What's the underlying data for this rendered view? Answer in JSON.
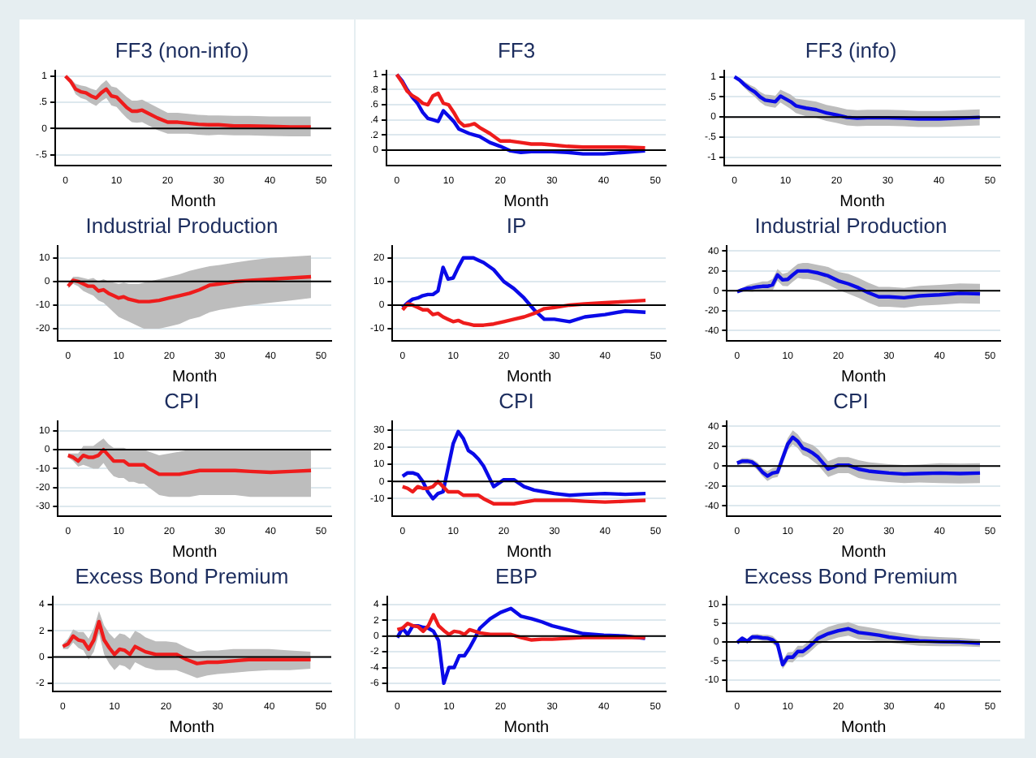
{
  "chart_data": [
    {
      "type": "line",
      "title": "FF3 (non-info)",
      "xlabel": "Month",
      "x": [
        0,
        1,
        2,
        3,
        4,
        5,
        6,
        7,
        8,
        9,
        10,
        11,
        12,
        13,
        14,
        15,
        16,
        18,
        20,
        22,
        24,
        26,
        28,
        30,
        33,
        36,
        40,
        44,
        48
      ],
      "xlim": [
        -2,
        52
      ],
      "xticks": [
        0,
        10,
        20,
        30,
        40,
        50
      ],
      "ylim": [
        -0.7,
        1.1
      ],
      "yticks": [
        {
          "value": -0.5,
          "label": "-.5"
        },
        0,
        {
          "value": 0.5,
          "label": ".5"
        },
        1
      ],
      "grid": "y",
      "ref_lines": [
        {
          "axis": "y",
          "value": 0,
          "color": "#000000"
        }
      ],
      "series": [
        {
          "color": "#ee1c1c",
          "values": [
            1,
            0.9,
            0.75,
            0.7,
            0.68,
            0.62,
            0.58,
            0.68,
            0.75,
            0.62,
            0.6,
            0.5,
            0.4,
            0.33,
            0.33,
            0.35,
            0.3,
            0.2,
            0.12,
            0.12,
            0.1,
            0.08,
            0.07,
            0.07,
            0.05,
            0.05,
            0.04,
            0.03,
            0.03
          ],
          "upper": [
            1,
            0.95,
            0.85,
            0.82,
            0.8,
            0.76,
            0.73,
            0.84,
            0.92,
            0.8,
            0.78,
            0.69,
            0.6,
            0.53,
            0.53,
            0.55,
            0.5,
            0.4,
            0.3,
            0.3,
            0.28,
            0.26,
            0.25,
            0.25,
            0.24,
            0.24,
            0.23,
            0.23,
            0.23
          ],
          "lower": [
            1,
            0.85,
            0.65,
            0.58,
            0.55,
            0.48,
            0.43,
            0.52,
            0.58,
            0.44,
            0.41,
            0.3,
            0.2,
            0.12,
            0.11,
            0.12,
            0.07,
            -0.03,
            -0.1,
            -0.1,
            -0.1,
            -0.12,
            -0.13,
            -0.12,
            -0.13,
            -0.13,
            -0.14,
            -0.15,
            -0.15
          ]
        }
      ]
    },
    {
      "type": "line",
      "title": "FF3",
      "xlabel": "Month",
      "x": [
        0,
        1,
        2,
        3,
        4,
        5,
        6,
        7,
        8,
        9,
        10,
        11,
        12,
        13,
        14,
        15,
        16,
        18,
        20,
        22,
        24,
        26,
        28,
        30,
        33,
        36,
        40,
        44,
        48
      ],
      "xlim": [
        -2,
        52
      ],
      "xticks": [
        0,
        10,
        20,
        30,
        40,
        50
      ],
      "ylim": [
        -0.2,
        1.05
      ],
      "yticks": [
        0,
        {
          "value": 0.2,
          "label": ".2"
        },
        {
          "value": 0.4,
          "label": ".4"
        },
        {
          "value": 0.6,
          "label": ".6"
        },
        {
          "value": 0.8,
          "label": ".8"
        },
        1
      ],
      "grid": "y",
      "ref_lines": [
        {
          "axis": "y",
          "value": 0,
          "color": "#000000"
        }
      ],
      "series": [
        {
          "color": "#ee1c1c",
          "values": [
            1,
            0.9,
            0.78,
            0.72,
            0.68,
            0.62,
            0.6,
            0.72,
            0.75,
            0.62,
            0.6,
            0.5,
            0.38,
            0.32,
            0.33,
            0.35,
            0.3,
            0.22,
            0.12,
            0.12,
            0.1,
            0.08,
            0.08,
            0.07,
            0.05,
            0.04,
            0.04,
            0.04,
            0.03
          ]
        },
        {
          "color": "#0a0ae8",
          "values": [
            1,
            0.92,
            0.8,
            0.7,
            0.62,
            0.5,
            0.42,
            0.4,
            0.38,
            0.52,
            0.45,
            0.38,
            0.28,
            0.25,
            0.22,
            0.2,
            0.18,
            0.1,
            0.05,
            -0.01,
            -0.03,
            -0.02,
            -0.02,
            -0.02,
            -0.03,
            -0.05,
            -0.05,
            -0.03,
            -0.01
          ]
        }
      ]
    },
    {
      "type": "line",
      "title": "FF3 (info)",
      "xlabel": "Month",
      "x": [
        0,
        1,
        2,
        3,
        4,
        5,
        6,
        7,
        8,
        9,
        10,
        11,
        12,
        13,
        14,
        15,
        16,
        18,
        20,
        22,
        24,
        26,
        28,
        30,
        33,
        36,
        40,
        44,
        48
      ],
      "xlim": [
        -2,
        52
      ],
      "xticks": [
        0,
        10,
        20,
        30,
        40,
        50
      ],
      "ylim": [
        -1.2,
        1.15
      ],
      "yticks": [
        -1,
        {
          "value": -0.5,
          "label": "-.5"
        },
        0,
        {
          "value": 0.5,
          "label": ".5"
        },
        1
      ],
      "grid": "y",
      "ref_lines": [
        {
          "axis": "y",
          "value": 0,
          "color": "#000000"
        }
      ],
      "series": [
        {
          "color": "#0a0ae8",
          "values": [
            1,
            0.92,
            0.8,
            0.7,
            0.62,
            0.5,
            0.42,
            0.4,
            0.38,
            0.52,
            0.45,
            0.38,
            0.28,
            0.25,
            0.22,
            0.2,
            0.18,
            0.1,
            0.05,
            -0.01,
            -0.03,
            -0.02,
            -0.02,
            -0.02,
            -0.03,
            -0.05,
            -0.05,
            -0.03,
            -0.01
          ],
          "upper": [
            1,
            0.97,
            0.88,
            0.8,
            0.74,
            0.63,
            0.56,
            0.55,
            0.53,
            0.68,
            0.62,
            0.56,
            0.46,
            0.44,
            0.42,
            0.4,
            0.38,
            0.3,
            0.25,
            0.19,
            0.17,
            0.18,
            0.18,
            0.18,
            0.17,
            0.15,
            0.15,
            0.17,
            0.19
          ],
          "lower": [
            1,
            0.87,
            0.72,
            0.6,
            0.5,
            0.37,
            0.28,
            0.25,
            0.23,
            0.36,
            0.28,
            0.2,
            0.1,
            0.06,
            0.02,
            0,
            -0.02,
            -0.1,
            -0.15,
            -0.21,
            -0.23,
            -0.22,
            -0.22,
            -0.22,
            -0.23,
            -0.25,
            -0.25,
            -0.23,
            -0.21
          ]
        }
      ]
    },
    {
      "type": "line",
      "title": "Industrial Production",
      "xlabel": "Month",
      "x": [
        0,
        1,
        2,
        3,
        4,
        5,
        6,
        7,
        8,
        9,
        10,
        11,
        12,
        13,
        14,
        15,
        16,
        18,
        20,
        22,
        24,
        26,
        28,
        30,
        33,
        36,
        40,
        44,
        48
      ],
      "xlim": [
        -2,
        52
      ],
      "xticks": [
        0,
        10,
        20,
        30,
        40,
        50
      ],
      "ylim": [
        -25,
        15
      ],
      "yticks": [
        -20,
        -10,
        0,
        10
      ],
      "grid": "y",
      "ref_lines": [
        {
          "axis": "y",
          "value": 0,
          "color": "#000000"
        }
      ],
      "series": [
        {
          "color": "#ee1c1c",
          "values": [
            -2,
            0.5,
            0,
            -1,
            -2,
            -2,
            -4,
            -3.5,
            -5,
            -6,
            -7,
            -6.5,
            -7.5,
            -8,
            -8.5,
            -8.5,
            -8.5,
            -8,
            -7,
            -6,
            -5,
            -3.5,
            -1.5,
            -1,
            0,
            0.5,
            1,
            1.5,
            2
          ],
          "upper": [
            -1,
            2,
            2,
            1.5,
            1,
            1.5,
            0,
            1,
            0,
            -0.5,
            -1,
            -0.5,
            -1,
            -1,
            -1,
            -0.5,
            0,
            1,
            2,
            3,
            4.5,
            5.5,
            6.5,
            7,
            8,
            9,
            10,
            10.5,
            11
          ],
          "lower": [
            -3,
            -1,
            -2,
            -4,
            -5,
            -6,
            -8,
            -9,
            -11,
            -13,
            -15,
            -16,
            -17,
            -18,
            -19,
            -20,
            -20,
            -20,
            -19,
            -18,
            -16,
            -15,
            -13,
            -12,
            -11,
            -10,
            -9,
            -8,
            -7
          ]
        }
      ]
    },
    {
      "type": "line",
      "title": "IP",
      "xlabel": "Month",
      "x": [
        0,
        1,
        2,
        3,
        4,
        5,
        6,
        7,
        8,
        9,
        10,
        11,
        12,
        13,
        14,
        15,
        16,
        18,
        20,
        22,
        24,
        26,
        28,
        30,
        33,
        36,
        40,
        44,
        48
      ],
      "xlim": [
        -2,
        52
      ],
      "xticks": [
        0,
        10,
        20,
        30,
        40,
        50
      ],
      "ylim": [
        -15,
        25
      ],
      "yticks": [
        -10,
        0,
        10,
        20
      ],
      "grid": "y",
      "ref_lines": [
        {
          "axis": "y",
          "value": 0,
          "color": "#000000"
        }
      ],
      "series": [
        {
          "color": "#ee1c1c",
          "values": [
            -2,
            0.5,
            0,
            -1,
            -2,
            -2,
            -4,
            -3.5,
            -5,
            -6,
            -7,
            -6.5,
            -7.5,
            -8,
            -8.5,
            -8.5,
            -8.5,
            -8,
            -7,
            -6,
            -5,
            -3.5,
            -1.5,
            -1,
            0,
            0.5,
            1,
            1.5,
            2
          ]
        },
        {
          "color": "#0a0ae8",
          "values": [
            -1,
            1,
            2.5,
            3,
            4,
            4.5,
            4.5,
            6,
            16,
            11,
            11.5,
            16,
            20,
            20,
            20,
            19,
            18,
            15,
            10,
            7,
            3,
            -2,
            -6,
            -6,
            -7,
            -5,
            -4,
            -2.5,
            -3
          ]
        }
      ]
    },
    {
      "type": "line",
      "title": "Industrial Production",
      "xlabel": "Month",
      "x": [
        0,
        1,
        2,
        3,
        4,
        5,
        6,
        7,
        8,
        9,
        10,
        11,
        12,
        13,
        14,
        15,
        16,
        18,
        20,
        22,
        24,
        26,
        28,
        30,
        33,
        36,
        40,
        44,
        48
      ],
      "xlim": [
        -2,
        52
      ],
      "xticks": [
        0,
        10,
        20,
        30,
        40,
        50
      ],
      "ylim": [
        -50,
        45
      ],
      "yticks": [
        -40,
        -20,
        0,
        20,
        40
      ],
      "grid": "y",
      "ref_lines": [
        {
          "axis": "y",
          "value": 0,
          "color": "#000000"
        }
      ],
      "series": [
        {
          "color": "#0a0ae8",
          "values": [
            -1,
            1,
            2.5,
            3,
            4,
            4.5,
            4.5,
            6,
            16,
            11,
            11.5,
            16,
            20,
            20,
            20,
            19,
            18,
            15,
            10,
            7,
            3,
            -2,
            -6,
            -6,
            -7,
            -5,
            -4,
            -2.5,
            -3
          ],
          "upper": [
            -1,
            3,
            5.5,
            7,
            8,
            9.5,
            9.5,
            12,
            22,
            17,
            18.5,
            23,
            27,
            28,
            28,
            27,
            26,
            24,
            19,
            17,
            13,
            8,
            4,
            4,
            3,
            5,
            6,
            7.5,
            7
          ],
          "lower": [
            -1,
            -1,
            -0.5,
            -1,
            0,
            -0.5,
            -0.5,
            0,
            10,
            5,
            4.5,
            9,
            13,
            12,
            12,
            11,
            10,
            6,
            1,
            -3,
            -7,
            -12,
            -16,
            -16,
            -17,
            -15,
            -14,
            -12.5,
            -13
          ]
        }
      ]
    },
    {
      "type": "line",
      "title": "CPI",
      "xlabel": "Month",
      "x": [
        0,
        1,
        2,
        3,
        4,
        5,
        6,
        7,
        8,
        9,
        10,
        11,
        12,
        13,
        14,
        15,
        16,
        18,
        20,
        22,
        24,
        26,
        28,
        30,
        33,
        36,
        40,
        44,
        48
      ],
      "xlim": [
        -2,
        52
      ],
      "xticks": [
        0,
        10,
        20,
        30,
        40,
        50
      ],
      "ylim": [
        -35,
        15
      ],
      "yticks": [
        -30,
        -20,
        -10,
        0,
        10
      ],
      "grid": "y",
      "ref_lines": [
        {
          "axis": "y",
          "value": 0,
          "color": "#000000"
        }
      ],
      "series": [
        {
          "color": "#ee1c1c",
          "values": [
            -3,
            -4,
            -6,
            -3,
            -4,
            -4,
            -3,
            0,
            -3,
            -6,
            -6,
            -6,
            -8,
            -8,
            -8,
            -8,
            -10,
            -13,
            -13,
            -13,
            -12,
            -11,
            -11,
            -11,
            -11,
            -11.5,
            -12,
            -11.5,
            -11
          ],
          "upper": [
            -2,
            -2,
            -2,
            2,
            2,
            2,
            4,
            6,
            3,
            1,
            1,
            1,
            0,
            0,
            0,
            0,
            -1,
            -3,
            -2,
            -1,
            0,
            0,
            0,
            0,
            0,
            0,
            0,
            0,
            0
          ],
          "lower": [
            -4,
            -6,
            -9,
            -8,
            -9,
            -10,
            -10,
            -7,
            -11,
            -14,
            -15,
            -15,
            -17,
            -17,
            -18,
            -18,
            -20,
            -24,
            -25,
            -25,
            -25,
            -24,
            -24,
            -24,
            -24,
            -25,
            -25,
            -25,
            -25
          ]
        }
      ]
    },
    {
      "type": "line",
      "title": "CPI",
      "xlabel": "Month",
      "x": [
        0,
        1,
        2,
        3,
        4,
        5,
        6,
        7,
        8,
        9,
        10,
        11,
        12,
        13,
        14,
        15,
        16,
        18,
        20,
        22,
        24,
        26,
        28,
        30,
        33,
        36,
        40,
        44,
        48
      ],
      "xlim": [
        -2,
        52
      ],
      "xticks": [
        0,
        10,
        20,
        30,
        40,
        50
      ],
      "ylim": [
        -20,
        35
      ],
      "yticks": [
        -10,
        0,
        10,
        20,
        30
      ],
      "grid": "y",
      "ref_lines": [
        {
          "axis": "y",
          "value": 0,
          "color": "#000000"
        }
      ],
      "series": [
        {
          "color": "#ee1c1c",
          "values": [
            -3,
            -4,
            -6,
            -3,
            -4,
            -4,
            -3,
            0,
            -3,
            -6,
            -6,
            -6,
            -8,
            -8,
            -8,
            -8,
            -10,
            -13,
            -13,
            -13,
            -12,
            -11,
            -11,
            -11,
            -11,
            -11.5,
            -12,
            -11.5,
            -11
          ]
        },
        {
          "color": "#0a0ae8",
          "values": [
            3,
            5,
            5,
            4,
            0,
            -6,
            -10,
            -7,
            -6,
            8,
            22,
            29,
            25,
            18,
            16,
            13,
            9,
            -3,
            1,
            1,
            -3,
            -5,
            -6,
            -7,
            -8,
            -7.5,
            -7,
            -7.5,
            -7
          ]
        }
      ]
    },
    {
      "type": "line",
      "title": "CPI",
      "xlabel": "Month",
      "x": [
        0,
        1,
        2,
        3,
        4,
        5,
        6,
        7,
        8,
        9,
        10,
        11,
        12,
        13,
        14,
        15,
        16,
        18,
        20,
        22,
        24,
        26,
        28,
        30,
        33,
        36,
        40,
        44,
        48
      ],
      "xlim": [
        -2,
        52
      ],
      "xticks": [
        0,
        10,
        20,
        30,
        40,
        50
      ],
      "ylim": [
        -50,
        45
      ],
      "yticks": [
        -40,
        -20,
        0,
        20,
        40
      ],
      "grid": "y",
      "ref_lines": [
        {
          "axis": "y",
          "value": 0,
          "color": "#000000"
        }
      ],
      "series": [
        {
          "color": "#0a0ae8",
          "values": [
            3,
            5,
            5,
            4,
            0,
            -6,
            -10,
            -7,
            -6,
            8,
            22,
            29,
            25,
            18,
            16,
            13,
            9,
            -3,
            1,
            1,
            -3,
            -5,
            -6,
            -7,
            -8,
            -7.5,
            -7,
            -7.5,
            -7
          ],
          "upper": [
            5,
            8,
            8,
            7,
            4,
            -2,
            -5,
            -2,
            -1,
            14,
            28,
            36,
            32,
            25,
            23,
            21,
            17,
            5,
            9,
            9,
            6,
            4,
            3,
            2,
            1,
            1.5,
            3,
            2.5,
            3
          ],
          "lower": [
            1,
            2,
            2,
            1,
            -4,
            -10,
            -15,
            -12,
            -11,
            2,
            16,
            22,
            18,
            11,
            9,
            5,
            1,
            -11,
            -7,
            -7,
            -12,
            -14,
            -15,
            -16,
            -17,
            -16.5,
            -17,
            -17.5,
            -17
          ]
        }
      ]
    },
    {
      "type": "line",
      "title": "Excess Bond Premium",
      "xlabel": "Month",
      "x": [
        0,
        1,
        2,
        3,
        4,
        5,
        6,
        7,
        8,
        9,
        10,
        11,
        12,
        13,
        14,
        15,
        16,
        18,
        20,
        22,
        24,
        26,
        28,
        30,
        33,
        36,
        40,
        44,
        48
      ],
      "xlim": [
        -2,
        52
      ],
      "xticks": [
        0,
        10,
        20,
        30,
        40,
        50
      ],
      "ylim": [
        -2.6,
        4.6
      ],
      "yticks": [
        -2,
        0,
        2,
        4
      ],
      "grid": "y",
      "ref_lines": [
        {
          "axis": "y",
          "value": 0,
          "color": "#000000"
        }
      ],
      "series": [
        {
          "color": "#ee1c1c",
          "values": [
            0.8,
            1,
            1.6,
            1.3,
            1.2,
            0.6,
            1.3,
            2.7,
            1.3,
            0.7,
            0.2,
            0.6,
            0.5,
            0.2,
            0.8,
            0.6,
            0.4,
            0.2,
            0.2,
            0.2,
            -0.2,
            -0.5,
            -0.4,
            -0.4,
            -0.3,
            -0.2,
            -0.2,
            -0.2,
            -0.2
          ],
          "upper": [
            1,
            1.4,
            2.1,
            1.9,
            1.9,
            1.4,
            2.2,
            3.5,
            2.4,
            1.8,
            1.4,
            1.8,
            1.7,
            1.4,
            2,
            1.8,
            1.5,
            1.2,
            1.2,
            1.1,
            0.7,
            0.4,
            0.5,
            0.5,
            0.6,
            0.6,
            0.6,
            0.5,
            0.4
          ],
          "lower": [
            0.6,
            0.6,
            1.1,
            0.7,
            0.5,
            -0.2,
            0.4,
            1.8,
            0.2,
            -0.5,
            -1,
            -0.6,
            -0.7,
            -1,
            -0.4,
            -0.6,
            -0.8,
            -1,
            -1,
            -1,
            -1.3,
            -1.6,
            -1.4,
            -1.3,
            -1.2,
            -1.1,
            -1,
            -1,
            -0.9
          ]
        }
      ]
    },
    {
      "type": "line",
      "title": "EBP",
      "xlabel": "Month",
      "x": [
        0,
        1,
        2,
        3,
        4,
        5,
        6,
        7,
        8,
        9,
        10,
        11,
        12,
        13,
        14,
        15,
        16,
        18,
        20,
        22,
        24,
        26,
        28,
        30,
        33,
        36,
        40,
        44,
        48
      ],
      "xlim": [
        -2,
        52
      ],
      "xticks": [
        0,
        10,
        20,
        30,
        40,
        50
      ],
      "ylim": [
        -7,
        5
      ],
      "yticks": [
        -6,
        -4,
        -2,
        0,
        2,
        4
      ],
      "grid": "y",
      "ref_lines": [
        {
          "axis": "y",
          "value": 0,
          "color": "#000000"
        }
      ],
      "series": [
        {
          "color": "#ee1c1c",
          "values": [
            0.8,
            1,
            1.6,
            1.3,
            1.2,
            0.6,
            1.3,
            2.7,
            1.3,
            0.7,
            0.2,
            0.6,
            0.5,
            0.2,
            0.8,
            0.6,
            0.4,
            0.2,
            0.2,
            0.2,
            -0.2,
            -0.5,
            -0.4,
            -0.4,
            -0.3,
            -0.2,
            -0.2,
            -0.2,
            -0.2
          ]
        },
        {
          "color": "#0a0ae8",
          "values": [
            -0.2,
            1,
            0.2,
            1.3,
            1.3,
            1.1,
            1,
            0.6,
            -0.6,
            -6,
            -4,
            -4,
            -2.5,
            -2.5,
            -1.5,
            -0.3,
            1,
            2.2,
            3,
            3.5,
            2.5,
            2.2,
            1.8,
            1.3,
            0.8,
            0.3,
            0.1,
            0,
            -0.3
          ]
        }
      ]
    },
    {
      "type": "line",
      "title": "Excess Bond Premium",
      "xlabel": "Month",
      "x": [
        0,
        1,
        2,
        3,
        4,
        5,
        6,
        7,
        8,
        9,
        10,
        11,
        12,
        13,
        14,
        15,
        16,
        18,
        20,
        22,
        24,
        26,
        28,
        30,
        33,
        36,
        40,
        44,
        48
      ],
      "xlim": [
        -2,
        52
      ],
      "xticks": [
        0,
        10,
        20,
        30,
        40,
        50
      ],
      "ylim": [
        -13,
        12
      ],
      "yticks": [
        -10,
        -5,
        0,
        5,
        10
      ],
      "grid": "y",
      "ref_lines": [
        {
          "axis": "y",
          "value": 0,
          "color": "#000000"
        }
      ],
      "series": [
        {
          "color": "#0a0ae8",
          "values": [
            -0.2,
            1,
            0.2,
            1.3,
            1.3,
            1.1,
            1,
            0.6,
            -0.6,
            -6,
            -4,
            -4,
            -2.5,
            -2.5,
            -1.5,
            -0.3,
            1,
            2.2,
            3,
            3.5,
            2.5,
            2.2,
            1.8,
            1.3,
            0.8,
            0.3,
            0.1,
            0,
            -0.3
          ],
          "upper": [
            0.1,
            1.5,
            0.8,
            2,
            2.1,
            1.9,
            1.9,
            1.6,
            0.4,
            -4.8,
            -2.7,
            -2.6,
            -1,
            -1,
            0.1,
            1.3,
            2.7,
            4,
            4.8,
            5.3,
            4.3,
            3.9,
            3.4,
            2.8,
            2.2,
            1.6,
            1.3,
            1.1,
            0.7
          ],
          "lower": [
            -0.5,
            0.5,
            -0.4,
            0.6,
            0.5,
            0.3,
            0.1,
            -0.4,
            -1.6,
            -7.2,
            -5.3,
            -5.4,
            -4,
            -4,
            -3.1,
            -1.9,
            -0.7,
            0.4,
            1.2,
            1.7,
            0.7,
            0.5,
            0.2,
            -0.2,
            -0.6,
            -1,
            -1.1,
            -1.1,
            -1.3
          ]
        }
      ]
    }
  ]
}
